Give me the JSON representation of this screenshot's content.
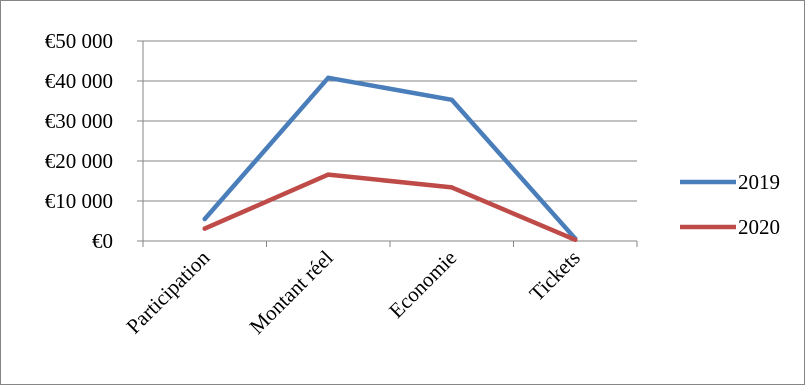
{
  "chart_data": {
    "type": "line",
    "title": "",
    "xlabel": "",
    "ylabel": "",
    "categories": [
      "Participation",
      "Montant réel",
      "Economie",
      "Tickets"
    ],
    "ylim": [
      0,
      50000
    ],
    "ytick_values": [
      0,
      10000,
      20000,
      30000,
      40000,
      50000
    ],
    "ytick_labels": [
      "€0",
      "€10 000",
      "€20 000",
      "€30 000",
      "€40 000",
      "€50 000"
    ],
    "grid": true,
    "legend_position": "right",
    "series": [
      {
        "name": "2019",
        "color": "#4a7ebb",
        "values": [
          5500,
          40800,
          35300,
          600
        ]
      },
      {
        "name": "2020",
        "color": "#be4b48",
        "values": [
          3100,
          16600,
          13400,
          300
        ]
      }
    ]
  }
}
